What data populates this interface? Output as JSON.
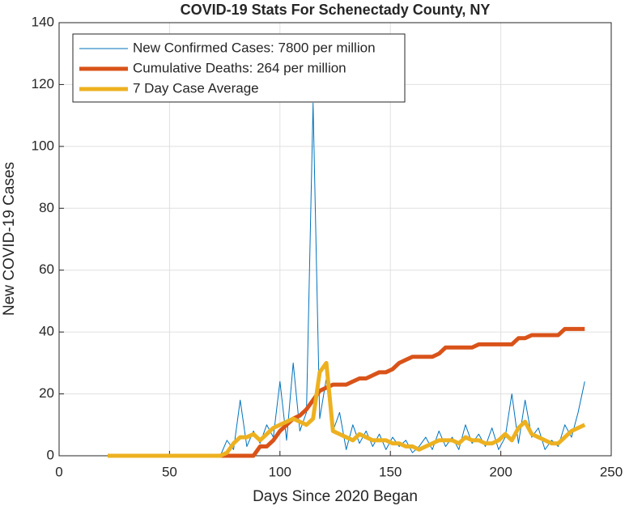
{
  "chart_data": {
    "type": "line",
    "title": "COVID-19 Stats For Schenectady County, NY",
    "x_label": "Days Since 2020 Began",
    "y_label": "New COVID-19 Cases",
    "x": [
      22,
      25,
      28,
      31,
      34,
      37,
      40,
      43,
      46,
      49,
      52,
      55,
      58,
      61,
      64,
      67,
      70,
      73,
      76,
      79,
      82,
      85,
      88,
      91,
      94,
      97,
      100,
      103,
      106,
      109,
      112,
      115,
      118,
      121,
      124,
      127,
      130,
      133,
      136,
      139,
      142,
      145,
      148,
      151,
      154,
      157,
      160,
      163,
      166,
      169,
      172,
      175,
      178,
      181,
      184,
      187,
      190,
      193,
      196,
      199,
      202,
      205,
      208,
      211,
      214,
      217,
      220,
      223,
      226,
      229,
      232,
      235,
      238
    ],
    "series": [
      {
        "name": "New Confirmed Cases: 7800 per million",
        "color": "#0072BD",
        "width": 1,
        "values": [
          0,
          0,
          0,
          0,
          0,
          0,
          0,
          0,
          0,
          0,
          0,
          0,
          0,
          0,
          0,
          0,
          0,
          0,
          5,
          2,
          18,
          3,
          8,
          4,
          10,
          6,
          24,
          5,
          30,
          8,
          14,
          114,
          12,
          25,
          8,
          14,
          2,
          10,
          4,
          8,
          3,
          7,
          2,
          6,
          3,
          5,
          1,
          3,
          6,
          2,
          8,
          3,
          6,
          2,
          10,
          4,
          7,
          3,
          9,
          2,
          6,
          20,
          4,
          18,
          6,
          9,
          2,
          5,
          3,
          10,
          6,
          14,
          24
        ]
      },
      {
        "name": "Cumulative Deaths: 264 per million",
        "color": "#D95319",
        "width": 5,
        "values": [
          0,
          0,
          0,
          0,
          0,
          0,
          0,
          0,
          0,
          0,
          0,
          0,
          0,
          0,
          0,
          0,
          0,
          0,
          0,
          0,
          0,
          0,
          0,
          3,
          3,
          5,
          8,
          10,
          12,
          13,
          15,
          18,
          21,
          22,
          23,
          23,
          23,
          24,
          25,
          25,
          26,
          27,
          27,
          28,
          30,
          31,
          32,
          32,
          32,
          32,
          33,
          35,
          35,
          35,
          35,
          35,
          36,
          36,
          36,
          36,
          36,
          36,
          38,
          38,
          39,
          39,
          39,
          39,
          39,
          41,
          41,
          41,
          41
        ]
      },
      {
        "name": "7 Day Case Average",
        "color": "#EDB120",
        "width": 5,
        "values": [
          0,
          0,
          0,
          0,
          0,
          0,
          0,
          0,
          0,
          0,
          0,
          0,
          0,
          0,
          0,
          0,
          0,
          0,
          1,
          4,
          6,
          6,
          7,
          5,
          7,
          9,
          10,
          11,
          12,
          11,
          10,
          12,
          27,
          30,
          8,
          7,
          6,
          5,
          7,
          6,
          5,
          5,
          5,
          4,
          4,
          3,
          3,
          2,
          3,
          4,
          5,
          5,
          5,
          4,
          6,
          5,
          5,
          4,
          4,
          5,
          7,
          5,
          9,
          11,
          7,
          6,
          5,
          4,
          4,
          6,
          8,
          9,
          10
        ]
      }
    ],
    "xlim": [
      0,
      250
    ],
    "xticks": [
      0,
      50,
      100,
      150,
      200,
      250
    ],
    "ylim": [
      0,
      140
    ],
    "yticks": [
      0,
      20,
      40,
      60,
      80,
      100,
      120,
      140
    ],
    "grid": true,
    "legend": "upper-left"
  }
}
